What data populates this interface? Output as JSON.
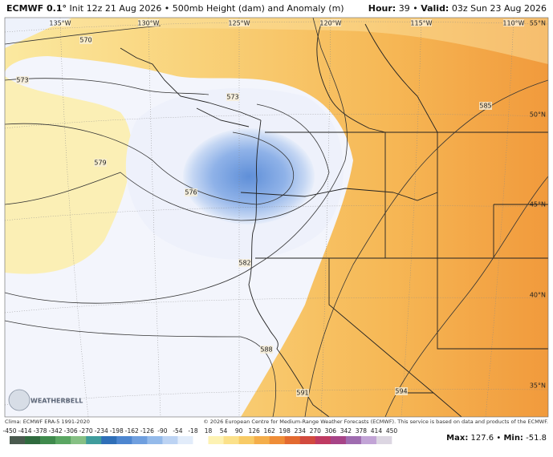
{
  "header": {
    "model": "ECMWF 0.1°",
    "info": "Init 12z 21 Aug 2026 • 500mb Height (dam) and Anomaly (m)",
    "hour_label": "Hour:",
    "hour": "39 •",
    "valid_label": "Valid:",
    "valid": "03z Sun 23 Aug 2026"
  },
  "map": {
    "longitudes": [
      "135°W",
      "130°W",
      "125°W",
      "120°W",
      "115°W",
      "110°W"
    ],
    "latitudes": [
      "55°N",
      "50°N",
      "45°N",
      "40°N",
      "35°N"
    ],
    "contours": [
      "570",
      "573",
      "573",
      "579",
      "576",
      "582",
      "585",
      "588",
      "591",
      "594"
    ],
    "logo": "WEATHERBELL"
  },
  "footer": {
    "climo": "Clima: ECMWF ERA-5 1991-2020",
    "copyright": "© 2026 European Centre for Medium-Range Weather Forecasts (ECMWF). This service is based on data and products of the ECMWF."
  },
  "colorbar": {
    "labels": [
      -450,
      -414,
      -378,
      -342,
      -306,
      -270,
      -234,
      -198,
      -162,
      -126,
      -90,
      -54,
      -18,
      18,
      54,
      90,
      126,
      162,
      198,
      234,
      270,
      306,
      342,
      378,
      414,
      450
    ],
    "colors": [
      "#4a5a4e",
      "#2f6a3e",
      "#3f8a4c",
      "#5aa662",
      "#86c084",
      "#3f9c9c",
      "#2f6fb8",
      "#4d86d0",
      "#6f9fdf",
      "#94baea",
      "#bcd3f3",
      "#e2ecfa",
      "#ffffff",
      "#fdf2b3",
      "#fbe18a",
      "#f8cb66",
      "#f4ae4a",
      "#ef8d37",
      "#e36a30",
      "#d24a3e",
      "#bf3a62",
      "#a74487",
      "#9f6cb0",
      "#c2a4d6",
      "#dcd6e2"
    ]
  },
  "stats": {
    "max_label": "Max:",
    "max": 127.6,
    "separator": "•",
    "min_label": "Min:",
    "min": -51.8
  }
}
